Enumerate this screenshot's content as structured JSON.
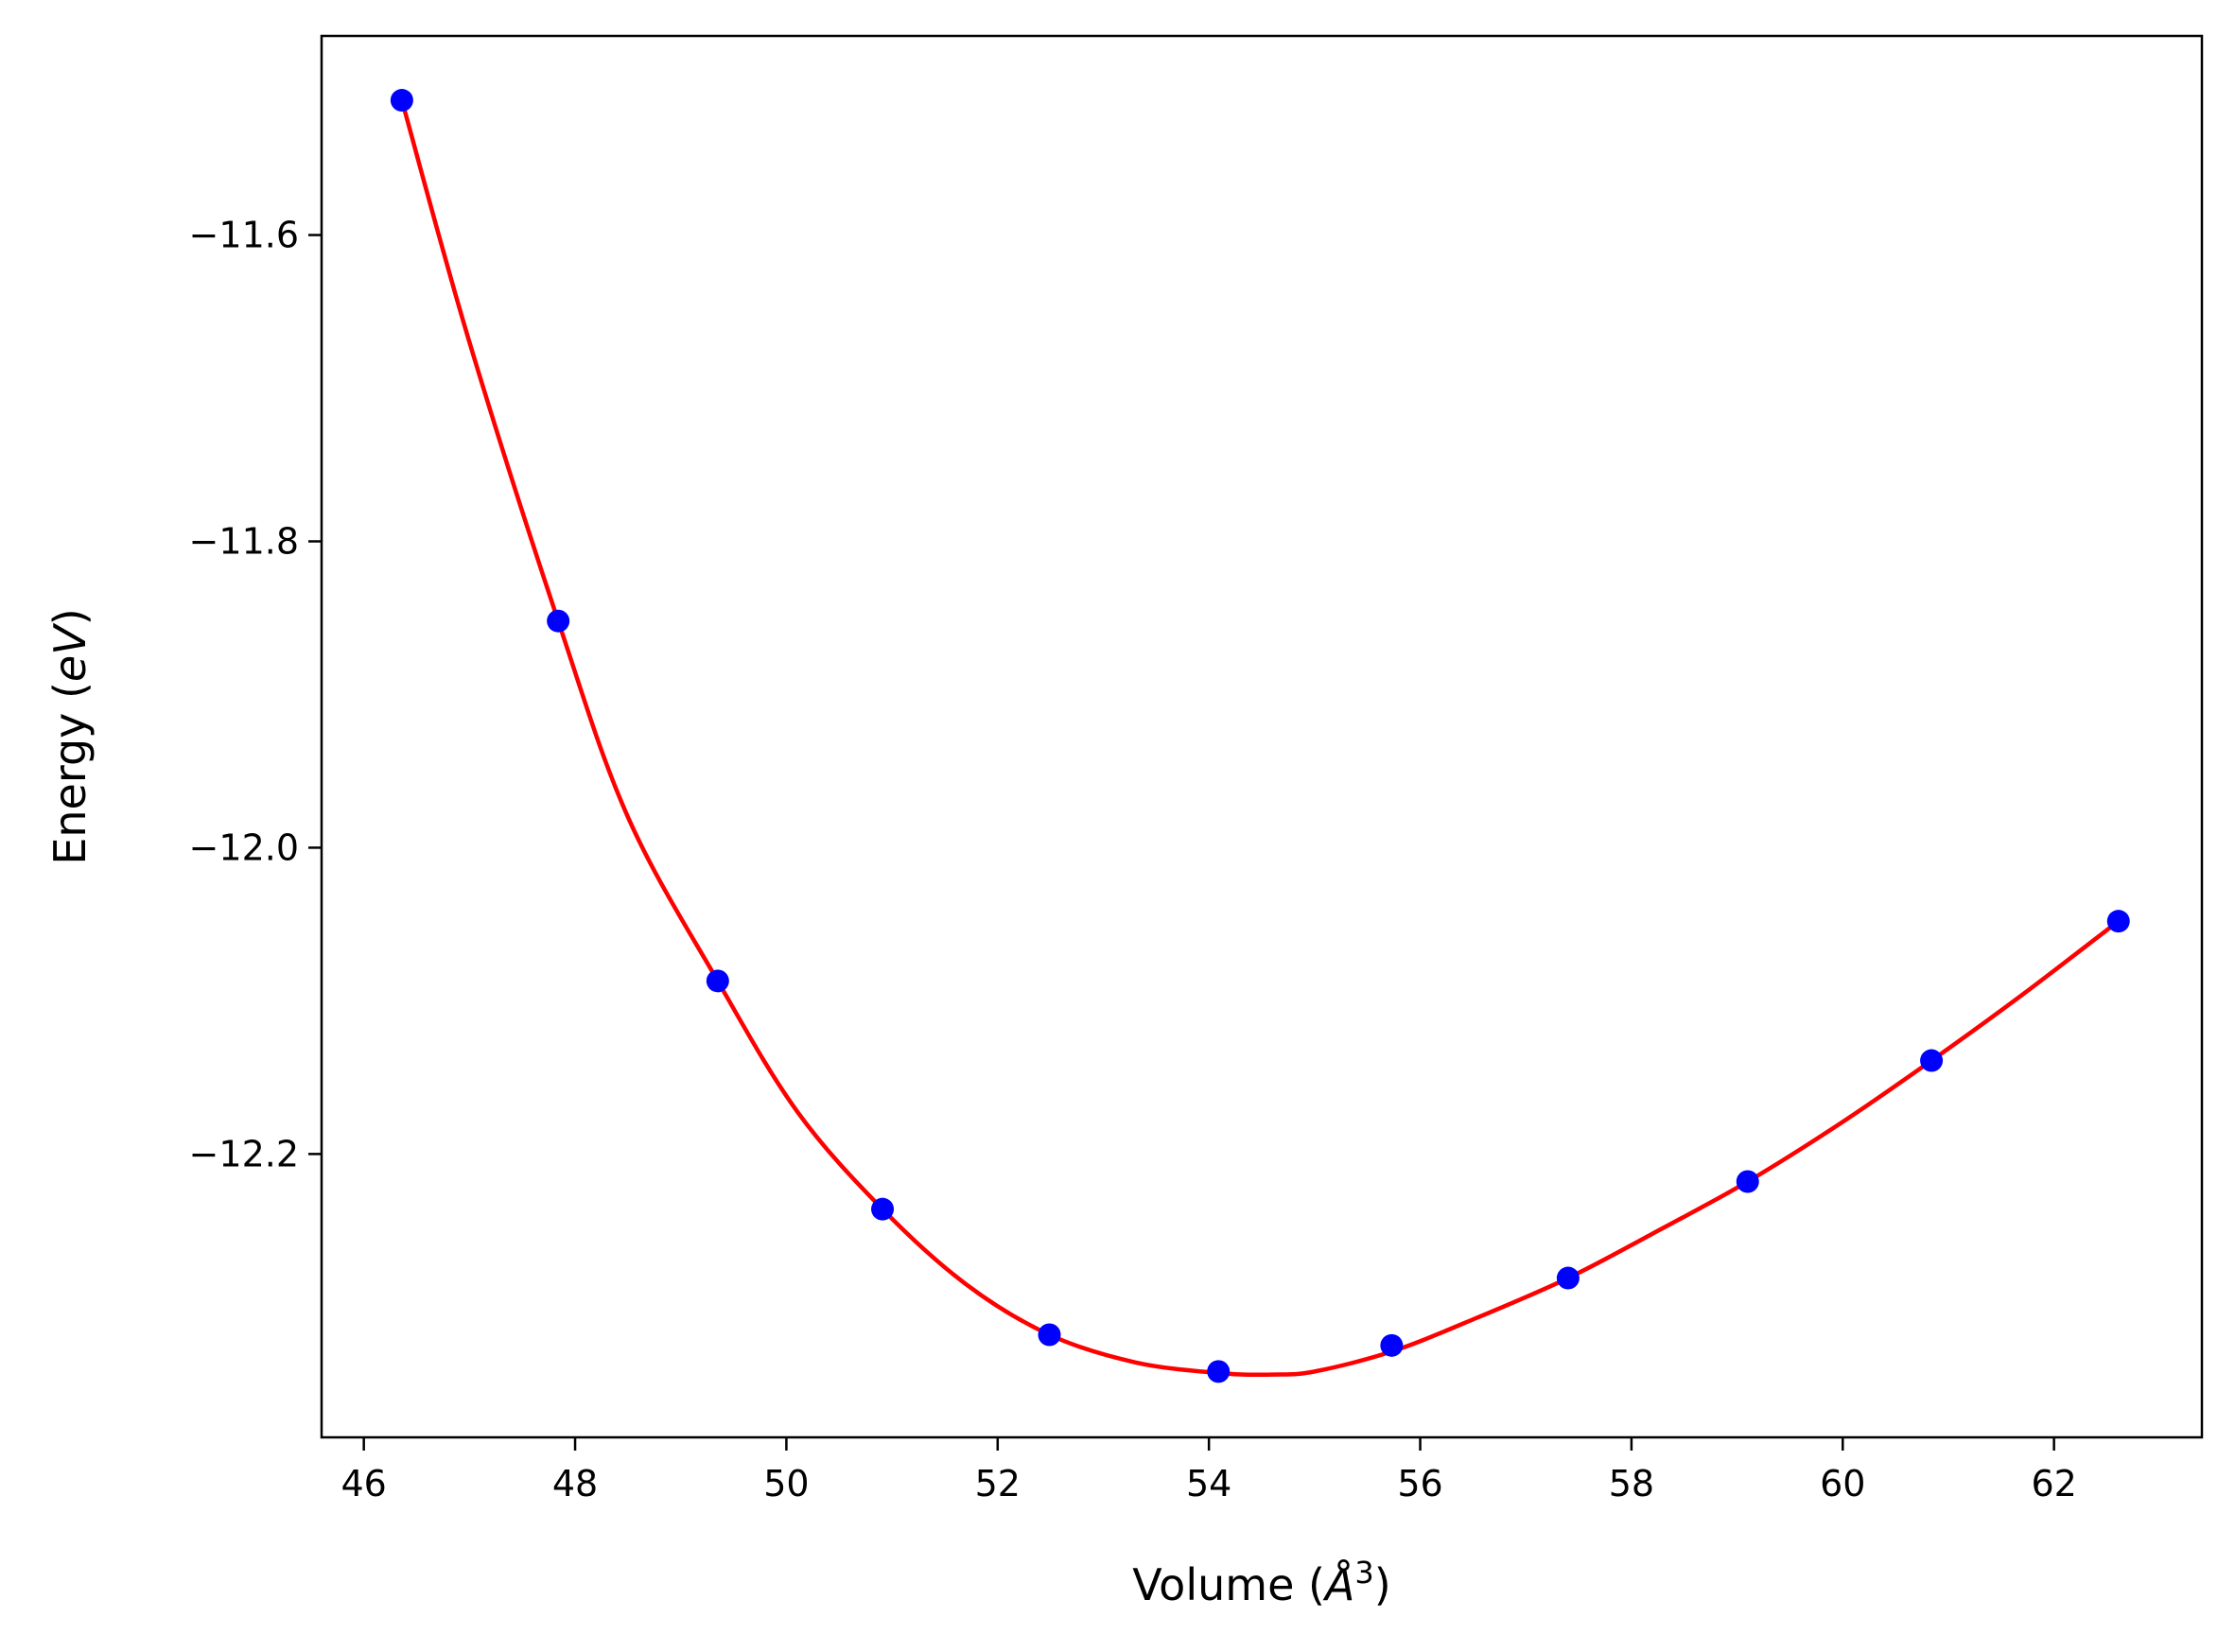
{
  "chart_data": {
    "type": "scatter",
    "xlabel_main": "Volume (",
    "xlabel_unit": "Å",
    "xlabel_sup": "3",
    "xlabel_end": ")",
    "ylabel_main": "Energy (",
    "ylabel_unit": "eV",
    "ylabel_end": ")",
    "xlim": [
      45.6,
      63.4
    ],
    "ylim": [
      -12.385,
      -11.47
    ],
    "x_ticks": [
      46,
      48,
      50,
      52,
      54,
      56,
      58,
      60,
      62
    ],
    "x_tick_labels": [
      "46",
      "48",
      "50",
      "52",
      "54",
      "56",
      "58",
      "60",
      "62"
    ],
    "y_ticks": [
      -11.6,
      -11.8,
      -12.0,
      -12.2
    ],
    "y_tick_labels": [
      "−11.6",
      "−11.8",
      "−12.0",
      "−12.2"
    ],
    "grid": false,
    "series": [
      {
        "kind": "points",
        "color": "#0000ff",
        "x": [
          46.36,
          47.84,
          49.35,
          50.91,
          52.49,
          54.09,
          55.73,
          57.4,
          59.1,
          60.84,
          62.61
        ],
        "y": [
          -11.512,
          -11.852,
          -12.087,
          -12.236,
          -12.318,
          -12.342,
          -12.325,
          -12.281,
          -12.218,
          -12.139,
          -12.048
        ]
      },
      {
        "kind": "fit-curve",
        "color": "#ff0000",
        "x": [
          46.36,
          47.0,
          47.84,
          48.5,
          49.35,
          50.1,
          50.91,
          51.7,
          52.49,
          53.3,
          54.09,
          54.6,
          55.0,
          55.73,
          56.5,
          57.4,
          58.2,
          59.1,
          60.0,
          60.84,
          61.7,
          62.61
        ],
        "y": [
          -11.512,
          -11.67,
          -11.852,
          -11.98,
          -12.087,
          -12.172,
          -12.236,
          -12.285,
          -12.318,
          -12.336,
          -12.343,
          -12.344,
          -12.342,
          -12.329,
          -12.308,
          -12.281,
          -12.252,
          -12.218,
          -12.179,
          -12.139,
          -12.096,
          -12.048
        ]
      }
    ]
  }
}
